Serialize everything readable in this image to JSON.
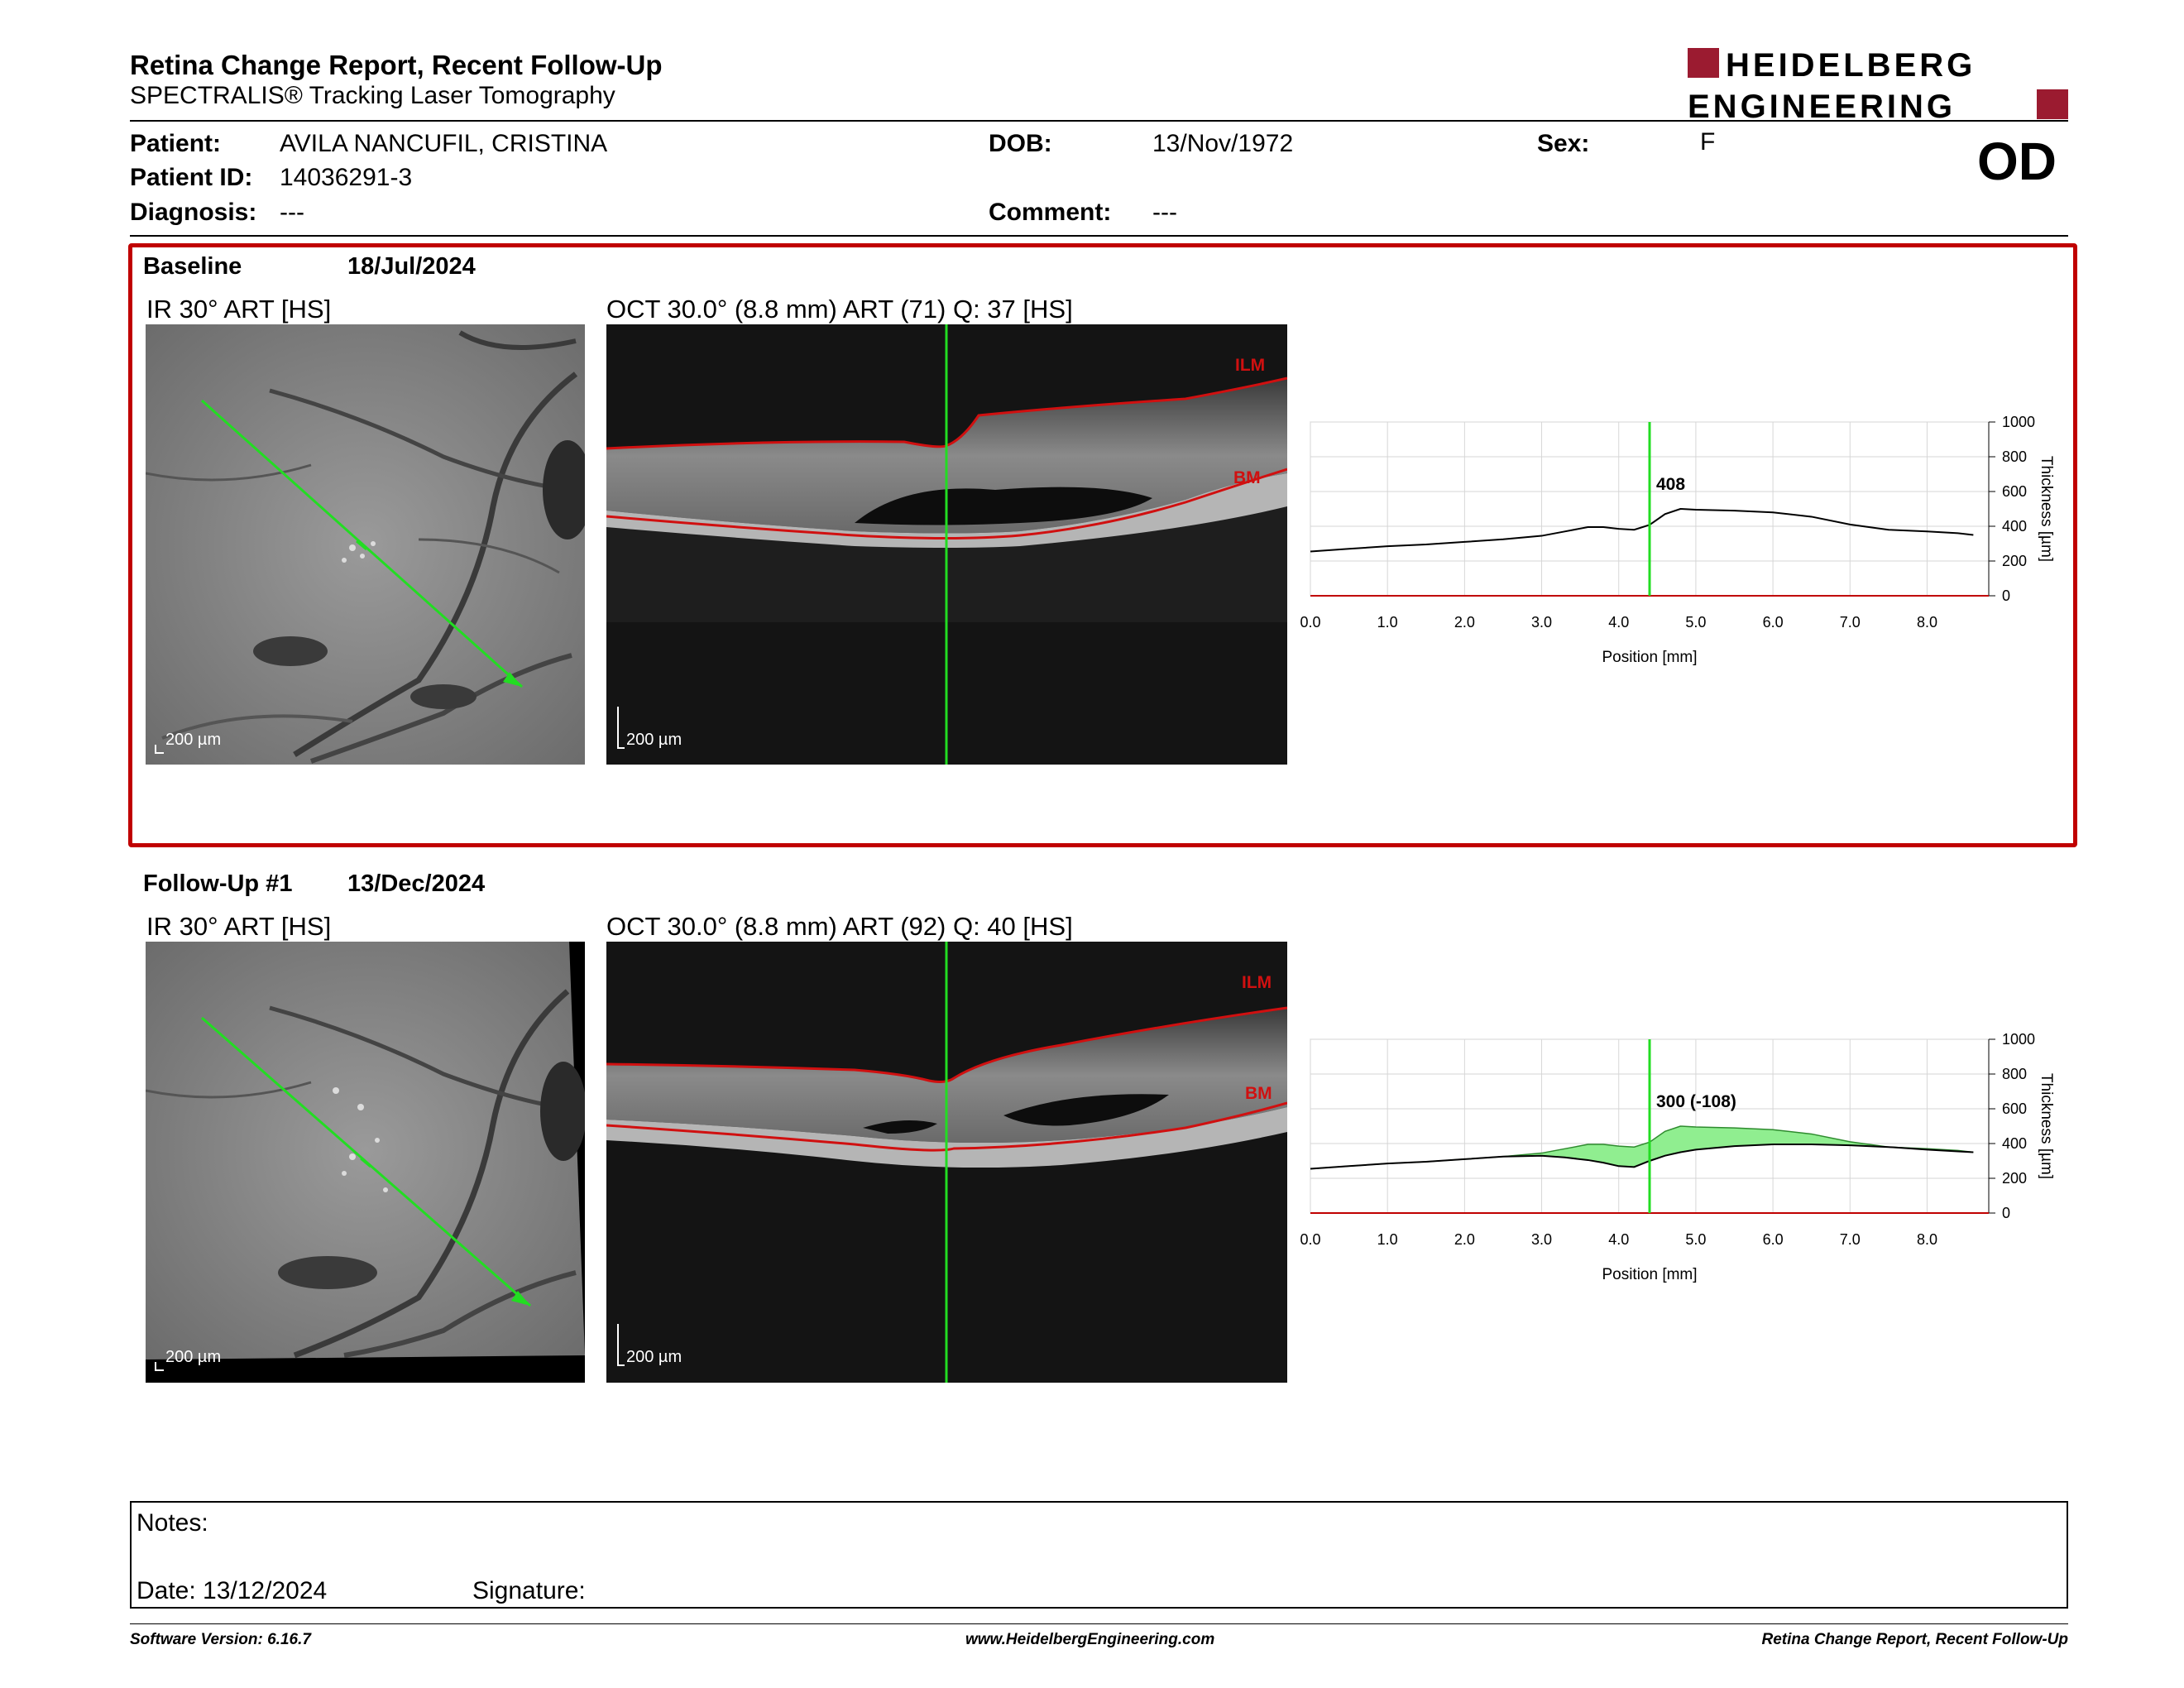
{
  "header": {
    "title": "Retina Change Report, Recent Follow-Up",
    "subtitle": "SPECTRALIS® Tracking Laser Tomography",
    "logo_line1": "HEIDELBERG",
    "logo_line2": "ENGINEERING",
    "eye": "OD"
  },
  "patient": {
    "patient_label": "Patient:",
    "patient_name": "AVILA NANCUFIL, CRISTINA",
    "id_label": "Patient ID:",
    "id_value": "14036291-3",
    "diagnosis_label": "Diagnosis:",
    "diagnosis_value": "---",
    "dob_label": "DOB:",
    "dob_value": "13/Nov/1972",
    "comment_label": "Comment:",
    "comment_value": "---",
    "sex_label": "Sex:",
    "sex_value": "F"
  },
  "baseline": {
    "label": "Baseline",
    "date": "18/Jul/2024",
    "ir_caption": "IR 30° ART [HS]",
    "oct_caption": "OCT 30.0° (8.8 mm) ART (71) Q: 37 [HS]",
    "scale_ir": "200 µm",
    "scale_oct": "200 µm",
    "ilm": "ILM",
    "bm": "BM",
    "marker_label": "408"
  },
  "followup": {
    "label": "Follow-Up #1",
    "date": "13/Dec/2024",
    "ir_caption": "IR 30° ART [HS]",
    "oct_caption": "OCT 30.0° (8.8 mm) ART (92) Q: 40 [HS]",
    "scale_ir": "200 µm",
    "scale_oct": "200 µm",
    "ilm": "ILM",
    "bm": "BM",
    "marker_label": "300 (-108)"
  },
  "chart_data": [
    {
      "type": "line",
      "xlabel": "Position [mm]",
      "ylabel": "Thickness [µm]",
      "xlim": [
        0,
        8.8
      ],
      "ylim": [
        0,
        1000
      ],
      "x_ticks": [
        "0.0",
        "1.0",
        "2.0",
        "3.0",
        "4.0",
        "5.0",
        "6.0",
        "7.0",
        "8.0"
      ],
      "y_ticks": [
        "0",
        "200",
        "400",
        "600",
        "800",
        "1000"
      ],
      "marker_x": 4.4,
      "marker_value": 408,
      "series": [
        {
          "x": [
            0.0,
            0.5,
            1.0,
            1.5,
            2.0,
            2.5,
            3.0,
            3.3,
            3.6,
            3.8,
            4.0,
            4.2,
            4.4,
            4.6,
            4.8,
            5.0,
            5.5,
            6.0,
            6.5,
            7.0,
            7.5,
            8.0,
            8.4,
            8.6
          ],
          "values": [
            255,
            270,
            285,
            295,
            310,
            325,
            345,
            370,
            395,
            395,
            385,
            380,
            408,
            470,
            500,
            495,
            490,
            480,
            455,
            410,
            380,
            370,
            360,
            350
          ]
        }
      ]
    },
    {
      "type": "area",
      "xlabel": "Position [mm]",
      "ylabel": "Thickness [µm]",
      "xlim": [
        0,
        8.8
      ],
      "ylim": [
        0,
        1000
      ],
      "x_ticks": [
        "0.0",
        "1.0",
        "2.0",
        "3.0",
        "4.0",
        "5.0",
        "6.0",
        "7.0",
        "8.0"
      ],
      "y_ticks": [
        "0",
        "200",
        "400",
        "600",
        "800",
        "1000"
      ],
      "marker_x": 4.4,
      "marker_value": 300,
      "marker_change": -108,
      "series": [
        {
          "x": [
            0.0,
            0.5,
            1.0,
            1.5,
            2.0,
            2.5,
            3.0,
            3.3,
            3.6,
            3.8,
            4.0,
            4.2,
            4.4,
            4.6,
            4.8,
            5.0,
            5.5,
            6.0,
            6.5,
            7.0,
            7.5,
            8.0,
            8.4,
            8.6
          ],
          "values": [
            255,
            270,
            285,
            295,
            310,
            325,
            330,
            320,
            305,
            290,
            270,
            265,
            300,
            330,
            350,
            365,
            385,
            395,
            395,
            390,
            380,
            365,
            355,
            350
          ]
        },
        {
          "x": [
            0.0,
            0.5,
            1.0,
            1.5,
            2.0,
            2.5,
            3.0,
            3.3,
            3.6,
            3.8,
            4.0,
            4.2,
            4.4,
            4.6,
            4.8,
            5.0,
            5.5,
            6.0,
            6.5,
            7.0,
            7.5,
            8.0,
            8.4,
            8.6
          ],
          "values": [
            255,
            270,
            285,
            295,
            310,
            325,
            345,
            370,
            395,
            395,
            385,
            380,
            408,
            470,
            500,
            495,
            490,
            480,
            455,
            410,
            380,
            370,
            360,
            350
          ]
        }
      ],
      "fill_color": "#90ee90"
    }
  ],
  "notes": {
    "notes_label": "Notes:",
    "date_label": "Date: 13/12/2024",
    "signature_label": "Signature:"
  },
  "footer": {
    "software": "Software Version: 6.16.7",
    "website": "www.HeidelbergEngineering.com",
    "report": "Retina Change Report, Recent Follow-Up"
  },
  "colors": {
    "accent_red": "#c00000",
    "scan_green": "#22dd22",
    "fill_green": "#90ee90"
  }
}
